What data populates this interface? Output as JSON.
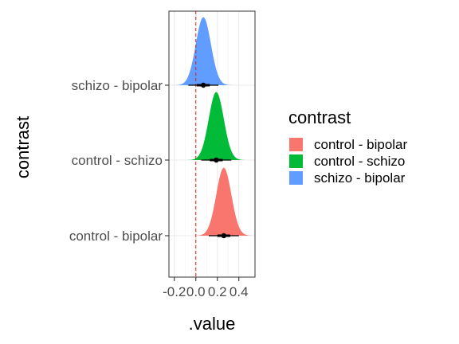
{
  "chart_data": {
    "type": "halfeye",
    "xlabel": ".value",
    "ylabel": "contrast",
    "xlim": [
      -0.25,
      0.55
    ],
    "x_ticks": [
      -0.2,
      0.0,
      0.2,
      0.4
    ],
    "x_tick_labels": [
      "-0.2",
      "0.0",
      "0.2",
      "0.4"
    ],
    "reference_line": {
      "x": 0.0,
      "color": "#e41a1c",
      "style": "dashed"
    },
    "grid": true,
    "legend": {
      "title": "contrast",
      "position": "right"
    },
    "categories": [
      "control - bipolar",
      "control - schizo",
      "schizo - bipolar"
    ],
    "series": [
      {
        "name": "control - bipolar",
        "color": "#F8766D",
        "mean": 0.26,
        "sd": 0.07,
        "interval_66": [
          0.2,
          0.32
        ],
        "interval_95": [
          0.12,
          0.4
        ]
      },
      {
        "name": "control - schizo",
        "color": "#00BA38",
        "mean": 0.19,
        "sd": 0.07,
        "interval_66": [
          0.13,
          0.25
        ],
        "interval_95": [
          0.05,
          0.33
        ]
      },
      {
        "name": "schizo - bipolar",
        "color": "#619CFF",
        "mean": 0.07,
        "sd": 0.07,
        "interval_66": [
          0.01,
          0.13
        ],
        "interval_95": [
          -0.07,
          0.21
        ]
      }
    ]
  }
}
